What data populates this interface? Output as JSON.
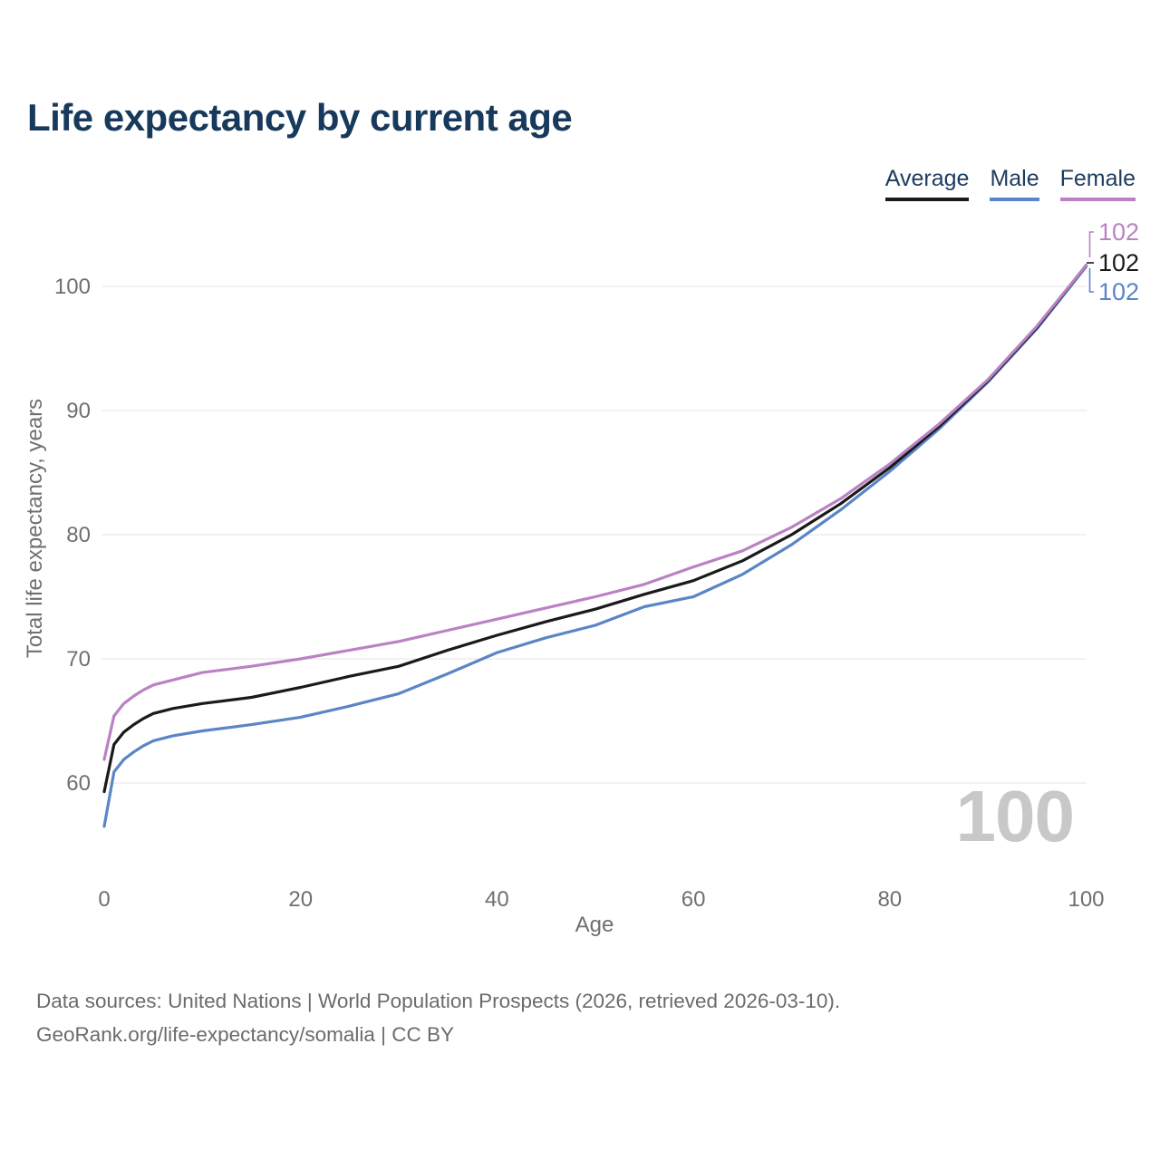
{
  "title": "Life expectancy by current age",
  "legend": {
    "items": [
      {
        "label": "Average",
        "color": "#1a1a1a"
      },
      {
        "label": "Male",
        "color": "#5a85c6"
      },
      {
        "label": "Female",
        "color": "#ba82c3"
      }
    ]
  },
  "watermark": "100",
  "footer": {
    "line1": "Data sources: United Nations | World Population Prospects (2026, retrieved 2026-03-10).",
    "line2": "GeoRank.org/life-expectancy/somalia | CC BY"
  },
  "chart_data": {
    "type": "line",
    "title": "Life expectancy by current age",
    "xlabel": "Age",
    "ylabel": "Total life expectancy, years",
    "xticks": [
      0,
      20,
      40,
      60,
      80,
      100
    ],
    "yticks": [
      60,
      70,
      80,
      90,
      100
    ],
    "xlim": [
      0,
      100
    ],
    "ylim": [
      56,
      104
    ],
    "grid": "horizontal",
    "legend_position": "top-right",
    "x": [
      0,
      1,
      2,
      3,
      4,
      5,
      7,
      10,
      15,
      20,
      25,
      30,
      35,
      40,
      45,
      50,
      55,
      60,
      65,
      70,
      75,
      80,
      85,
      90,
      95,
      100
    ],
    "series": [
      {
        "name": "Male",
        "color": "#5a85c6",
        "end_label": "102",
        "values": [
          56.5,
          60.9,
          61.9,
          62.5,
          63.0,
          63.4,
          63.8,
          64.2,
          64.7,
          65.3,
          66.2,
          67.2,
          68.8,
          70.5,
          71.7,
          72.7,
          74.2,
          75.0,
          76.8,
          79.2,
          82.0,
          85.1,
          88.5,
          92.3,
          96.6,
          101.6
        ]
      },
      {
        "name": "Average",
        "color": "#1a1a1a",
        "end_label": "102",
        "values": [
          59.3,
          63.1,
          64.1,
          64.7,
          65.2,
          65.6,
          66.0,
          66.4,
          66.9,
          67.7,
          68.6,
          69.4,
          70.7,
          71.9,
          73.0,
          74.0,
          75.2,
          76.3,
          77.9,
          80.0,
          82.5,
          85.4,
          88.7,
          92.4,
          96.7,
          101.7
        ]
      },
      {
        "name": "Female",
        "color": "#ba82c3",
        "end_label": "102",
        "values": [
          61.9,
          65.4,
          66.4,
          67.0,
          67.5,
          67.9,
          68.3,
          68.9,
          69.4,
          70.0,
          70.7,
          71.4,
          72.3,
          73.2,
          74.1,
          75.0,
          76.0,
          77.4,
          78.7,
          80.6,
          82.9,
          85.7,
          88.9,
          92.5,
          96.8,
          101.7
        ]
      }
    ]
  }
}
